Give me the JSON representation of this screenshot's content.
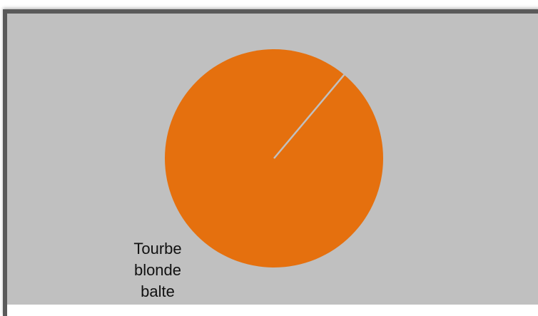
{
  "chart_data": {
    "type": "pie",
    "title": "",
    "slices": [
      {
        "label": "Tourbe blonde balte",
        "value": 100,
        "color": "#e5700e"
      }
    ],
    "legend": "none",
    "background": "#c0c0c0",
    "separator_color": "#c0c0c0"
  }
}
